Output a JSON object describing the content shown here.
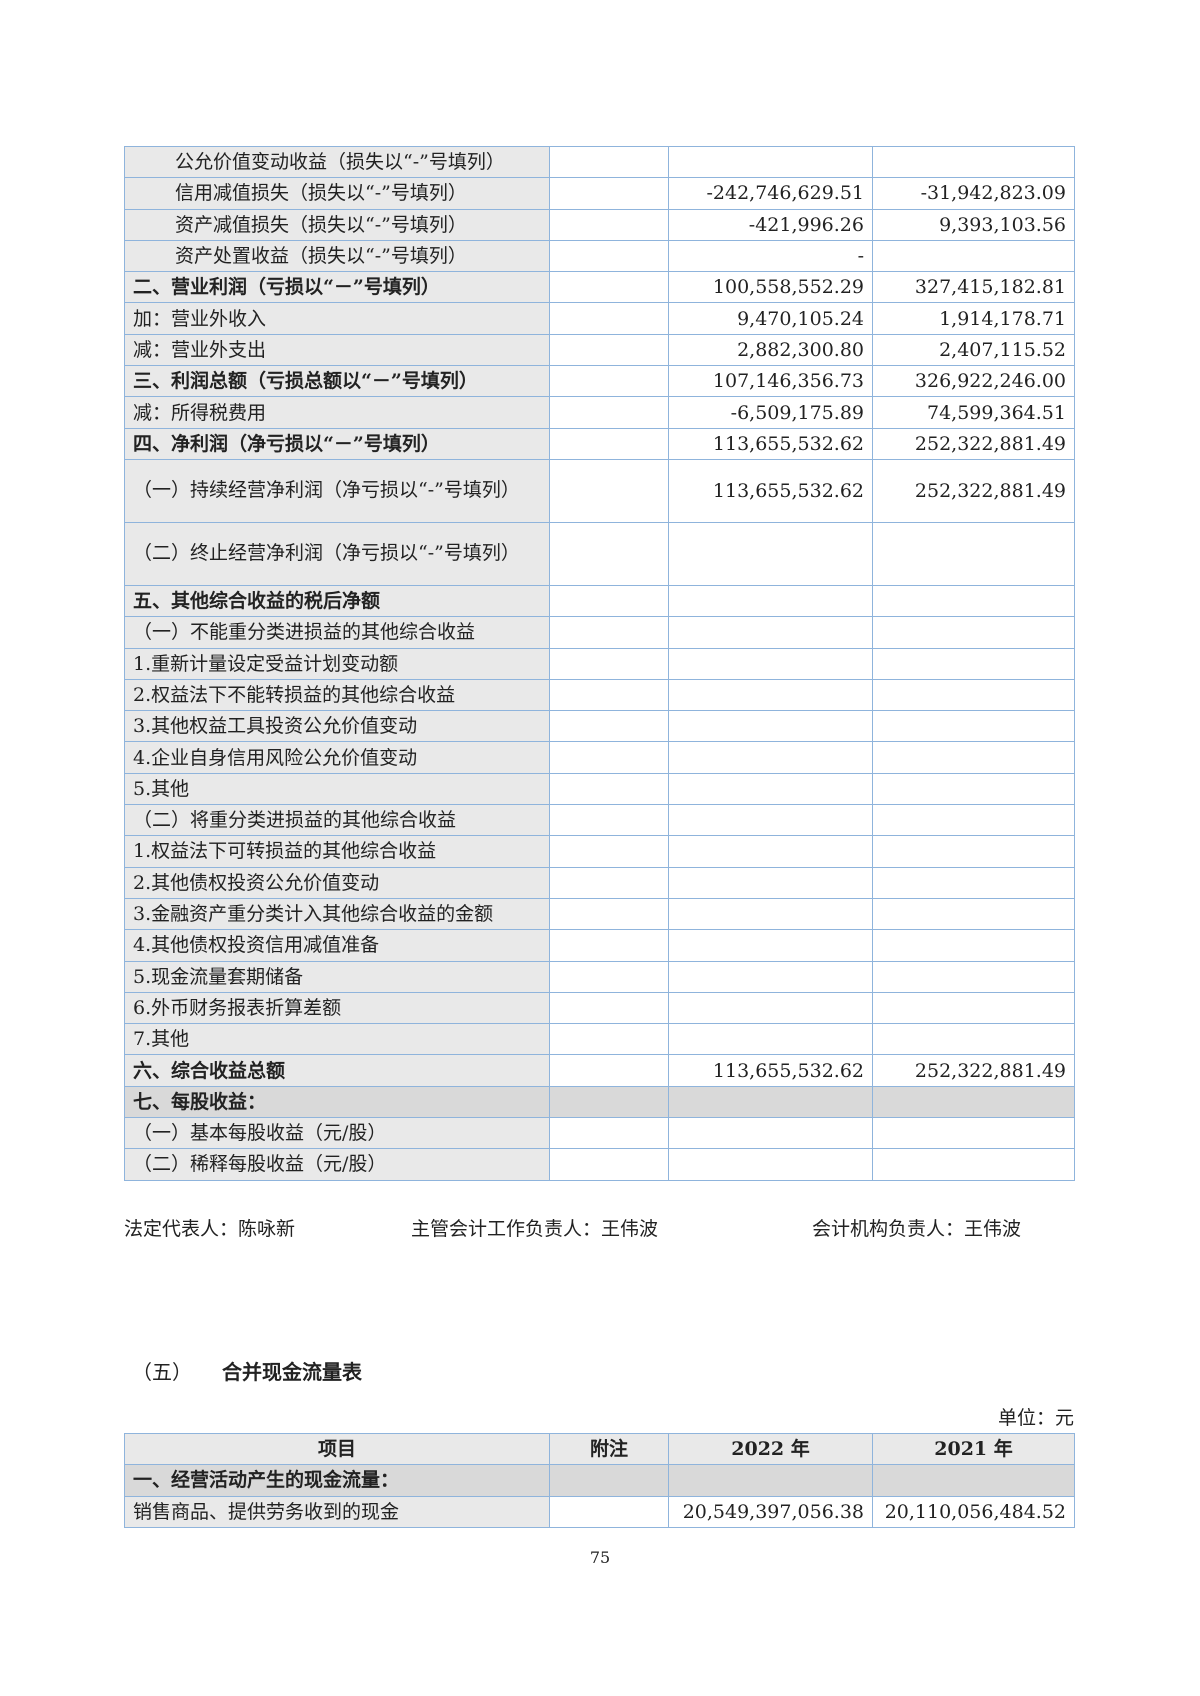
{
  "income_rows": [
    {
      "item": "公允价值变动收益（损失以“-”号填列）",
      "note": "",
      "y2022": "",
      "y2021": "",
      "style": "indent"
    },
    {
      "item": "信用减值损失（损失以“-”号填列）",
      "note": "",
      "y2022": "-242,746,629.51",
      "y2021": "-31,942,823.09",
      "style": "indent"
    },
    {
      "item": "资产减值损失（损失以“-”号填列）",
      "note": "",
      "y2022": "-421,996.26",
      "y2021": "9,393,103.56",
      "style": "indent"
    },
    {
      "item": "资产处置收益（损失以“-”号填列）",
      "note": "",
      "y2022": "-",
      "y2021": "",
      "style": "indent"
    },
    {
      "item": "二、营业利润（亏损以“－”号填列）",
      "note": "",
      "y2022": "100,558,552.29",
      "y2021": "327,415,182.81",
      "style": "bold"
    },
    {
      "item": "加：营业外收入",
      "note": "",
      "y2022": "9,470,105.24",
      "y2021": "1,914,178.71",
      "style": ""
    },
    {
      "item": "减：营业外支出",
      "note": "",
      "y2022": "2,882,300.80",
      "y2021": "2,407,115.52",
      "style": ""
    },
    {
      "item": "三、利润总额（亏损总额以“－”号填列）",
      "note": "",
      "y2022": "107,146,356.73",
      "y2021": "326,922,246.00",
      "style": "bold"
    },
    {
      "item": "减：所得税费用",
      "note": "",
      "y2022": "-6,509,175.89",
      "y2021": "74,599,364.51",
      "style": ""
    },
    {
      "item": "四、净利润（净亏损以“－”号填列）",
      "note": "",
      "y2022": "113,655,532.62",
      "y2021": "252,322,881.49",
      "style": "bold"
    },
    {
      "item": "（一）持续经营净利润（净亏损以“-”号填列）",
      "note": "",
      "y2022": "113,655,532.62",
      "y2021": "252,322,881.49",
      "style": "dbl"
    },
    {
      "item": "（二）终止经营净利润（净亏损以“-”号填列）",
      "note": "",
      "y2022": "",
      "y2021": "",
      "style": "dbl"
    },
    {
      "item": "五、其他综合收益的税后净额",
      "note": "",
      "y2022": "",
      "y2021": "",
      "style": "bold"
    },
    {
      "item": "（一）不能重分类进损益的其他综合收益",
      "note": "",
      "y2022": "",
      "y2021": "",
      "style": ""
    },
    {
      "item": "1.重新计量设定受益计划变动额",
      "note": "",
      "y2022": "",
      "y2021": "",
      "style": ""
    },
    {
      "item": "2.权益法下不能转损益的其他综合收益",
      "note": "",
      "y2022": "",
      "y2021": "",
      "style": ""
    },
    {
      "item": "3.其他权益工具投资公允价值变动",
      "note": "",
      "y2022": "",
      "y2021": "",
      "style": ""
    },
    {
      "item": "4.企业自身信用风险公允价值变动",
      "note": "",
      "y2022": "",
      "y2021": "",
      "style": ""
    },
    {
      "item": "5.其他",
      "note": "",
      "y2022": "",
      "y2021": "",
      "style": ""
    },
    {
      "item": "（二）将重分类进损益的其他综合收益",
      "note": "",
      "y2022": "",
      "y2021": "",
      "style": ""
    },
    {
      "item": "1.权益法下可转损益的其他综合收益",
      "note": "",
      "y2022": "",
      "y2021": "",
      "style": ""
    },
    {
      "item": "2.其他债权投资公允价值变动",
      "note": "",
      "y2022": "",
      "y2021": "",
      "style": ""
    },
    {
      "item": "3.金融资产重分类计入其他综合收益的金额",
      "note": "",
      "y2022": "",
      "y2021": "",
      "style": ""
    },
    {
      "item": "4.其他债权投资信用减值准备",
      "note": "",
      "y2022": "",
      "y2021": "",
      "style": ""
    },
    {
      "item": "5.现金流量套期储备",
      "note": "",
      "y2022": "",
      "y2021": "",
      "style": ""
    },
    {
      "item": "6.外币财务报表折算差额",
      "note": "",
      "y2022": "",
      "y2021": "",
      "style": ""
    },
    {
      "item": "7.其他",
      "note": "",
      "y2022": "",
      "y2021": "",
      "style": ""
    },
    {
      "item": "六、综合收益总额",
      "note": "",
      "y2022": "113,655,532.62",
      "y2021": "252,322,881.49",
      "style": "bold"
    },
    {
      "item": "七、每股收益：",
      "note": "",
      "y2022": "",
      "y2021": "",
      "style": "bold gray"
    },
    {
      "item": "（一）基本每股收益（元/股）",
      "note": "",
      "y2022": "",
      "y2021": "",
      "style": ""
    },
    {
      "item": "（二）稀释每股收益（元/股）",
      "note": "",
      "y2022": "",
      "y2021": "",
      "style": ""
    }
  ],
  "signatures": {
    "legal_rep": "法定代表人：陈咏新",
    "accounting_head": "主管会计工作负责人：王伟波",
    "accounting_org_head": "会计机构负责人：王伟波"
  },
  "cashflow": {
    "section_num": "（五）",
    "title": "合并现金流量表",
    "unit": "单位：元",
    "headers": [
      "项目",
      "附注",
      "2022 年",
      "2021 年"
    ],
    "rows": [
      {
        "item": "一、经营活动产生的现金流量：",
        "note": "",
        "y2022": "",
        "y2021": "",
        "style": "bold gray"
      },
      {
        "item": "销售商品、提供劳务收到的现金",
        "note": "",
        "y2022": "20,549,397,056.38",
        "y2021": "20,110,056,484.52",
        "style": ""
      }
    ]
  },
  "page_number": "75",
  "colors": {
    "border": "#8fb4dc",
    "item_bg": "#e9e9e9",
    "section_bg": "#d9d9d9"
  }
}
